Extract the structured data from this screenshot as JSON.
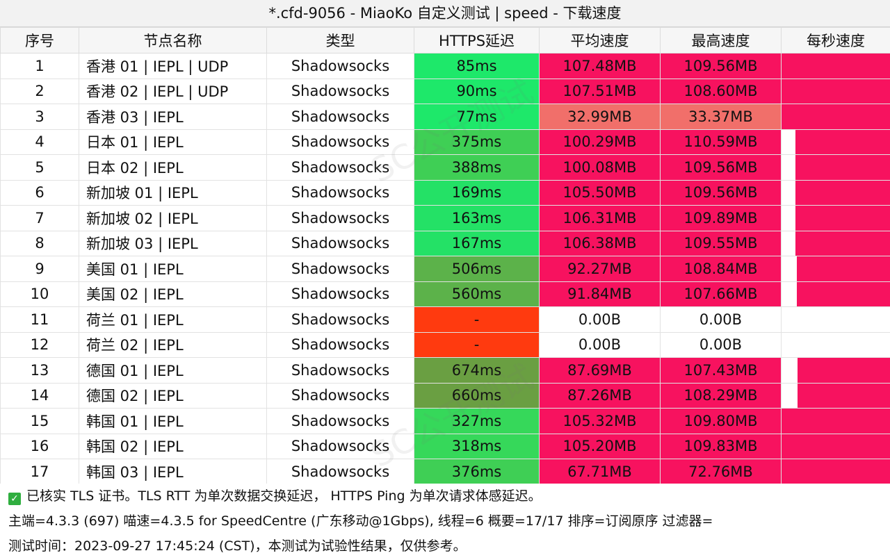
{
  "title": "*.cfd-9056 - MiaoKo 自定义测试 | speed - 下载速度",
  "headers": [
    "序号",
    "节点名称",
    "类型",
    "HTTPS延迟",
    "平均速度",
    "最高速度",
    "每秒速度"
  ],
  "rows": [
    {
      "id": "1",
      "name": "香港 01 | IEPL | UDP",
      "type": "Shadowsocks",
      "latency": "85ms",
      "avg": "107.48MB",
      "max": "109.56MB",
      "lat_color": "#1ee86a",
      "avg_color": "#f7125f",
      "max_color": "#f7125f",
      "per_sec_fill": 1.0
    },
    {
      "id": "2",
      "name": "香港 02 | IEPL | UDP",
      "type": "Shadowsocks",
      "latency": "90ms",
      "avg": "107.51MB",
      "max": "108.60MB",
      "lat_color": "#1ee86a",
      "avg_color": "#f7125f",
      "max_color": "#f7125f",
      "per_sec_fill": 1.0
    },
    {
      "id": "3",
      "name": "香港 03 | IEPL",
      "type": "Shadowsocks",
      "latency": "77ms",
      "avg": "32.99MB",
      "max": "33.37MB",
      "lat_color": "#1ee86a",
      "avg_color": "#f16f6a",
      "max_color": "#f16f6a",
      "per_sec_fill": 1.0
    },
    {
      "id": "4",
      "name": "日本 01 | IEPL",
      "type": "Shadowsocks",
      "latency": "375ms",
      "avg": "100.29MB",
      "max": "110.59MB",
      "lat_color": "#3fcf55",
      "avg_color": "#f7125f",
      "max_color": "#f7125f",
      "per_sec_fill": 0.87
    },
    {
      "id": "5",
      "name": "日本 02 | IEPL",
      "type": "Shadowsocks",
      "latency": "388ms",
      "avg": "100.08MB",
      "max": "109.56MB",
      "lat_color": "#3fcf55",
      "avg_color": "#f7125f",
      "max_color": "#f7125f",
      "per_sec_fill": 0.87
    },
    {
      "id": "6",
      "name": "新加坡 01 | IEPL",
      "type": "Shadowsocks",
      "latency": "169ms",
      "avg": "105.50MB",
      "max": "109.56MB",
      "lat_color": "#24e166",
      "avg_color": "#f7125f",
      "max_color": "#f7125f",
      "per_sec_fill": 0.87
    },
    {
      "id": "7",
      "name": "新加坡 02 | IEPL",
      "type": "Shadowsocks",
      "latency": "163ms",
      "avg": "106.31MB",
      "max": "109.89MB",
      "lat_color": "#24e166",
      "avg_color": "#f7125f",
      "max_color": "#f7125f",
      "per_sec_fill": 0.87
    },
    {
      "id": "8",
      "name": "新加坡 03 | IEPL",
      "type": "Shadowsocks",
      "latency": "167ms",
      "avg": "106.38MB",
      "max": "109.55MB",
      "lat_color": "#24e166",
      "avg_color": "#f7125f",
      "max_color": "#f7125f",
      "per_sec_fill": 0.87
    },
    {
      "id": "9",
      "name": "美国 01 | IEPL",
      "type": "Shadowsocks",
      "latency": "506ms",
      "avg": "92.27MB",
      "max": "108.84MB",
      "lat_color": "#5cb24a",
      "avg_color": "#f7125f",
      "max_color": "#f7125f",
      "per_sec_fill": 0.86
    },
    {
      "id": "10",
      "name": "美国 02 | IEPL",
      "type": "Shadowsocks",
      "latency": "560ms",
      "avg": "91.84MB",
      "max": "107.66MB",
      "lat_color": "#5cb24a",
      "avg_color": "#f7125f",
      "max_color": "#f7125f",
      "per_sec_fill": 0.86
    },
    {
      "id": "11",
      "name": "荷兰 01 | IEPL",
      "type": "Shadowsocks",
      "latency": "-",
      "avg": "0.00B",
      "max": "0.00B",
      "lat_color": "#ff3a0f",
      "avg_color": "#ffffff",
      "max_color": "#ffffff",
      "per_sec_fill": 0
    },
    {
      "id": "12",
      "name": "荷兰 02 | IEPL",
      "type": "Shadowsocks",
      "latency": "-",
      "avg": "0.00B",
      "max": "0.00B",
      "lat_color": "#ff3a0f",
      "avg_color": "#ffffff",
      "max_color": "#ffffff",
      "per_sec_fill": 0
    },
    {
      "id": "13",
      "name": "德国 01 | IEPL",
      "type": "Shadowsocks",
      "latency": "674ms",
      "avg": "87.69MB",
      "max": "107.43MB",
      "lat_color": "#6a9f42",
      "avg_color": "#f7125f",
      "max_color": "#f7125f",
      "per_sec_fill": 0.85
    },
    {
      "id": "14",
      "name": "德国 02 | IEPL",
      "type": "Shadowsocks",
      "latency": "660ms",
      "avg": "87.26MB",
      "max": "108.29MB",
      "lat_color": "#6a9f42",
      "avg_color": "#f7125f",
      "max_color": "#f7125f",
      "per_sec_fill": 0.85
    },
    {
      "id": "15",
      "name": "韩国 01 | IEPL",
      "type": "Shadowsocks",
      "latency": "327ms",
      "avg": "105.32MB",
      "max": "109.80MB",
      "lat_color": "#36d85a",
      "avg_color": "#f7125f",
      "max_color": "#f7125f",
      "per_sec_fill": 1.0
    },
    {
      "id": "16",
      "name": "韩国 02 | IEPL",
      "type": "Shadowsocks",
      "latency": "318ms",
      "avg": "105.20MB",
      "max": "109.83MB",
      "lat_color": "#36d85a",
      "avg_color": "#f7125f",
      "max_color": "#f7125f",
      "per_sec_fill": 1.0
    },
    {
      "id": "17",
      "name": "韩国 03 | IEPL",
      "type": "Shadowsocks",
      "latency": "376ms",
      "avg": "67.71MB",
      "max": "72.76MB",
      "lat_color": "#3fcf55",
      "avg_color": "#f7125f",
      "max_color": "#f7125f",
      "per_sec_fill": 1.0
    }
  ],
  "bar_color": "#f7125f",
  "footer": {
    "line1": "已核实 TLS 证书。TLS RTT 为单次数据交换延迟， HTTPS Ping 为单次请求体感延迟。",
    "line2": "主端=4.3.3 (697) 喵速=4.3.5 for SpeedCentre (广东移动@1Gbps), 线程=6 概要=17/17 排序=订阅原序 过滤器=",
    "line3": "测试时间：2023-09-27 17:45:24 (CST)，本测试为试验性结果，仅供参考。"
  },
  "watermark": "SC公开测试"
}
